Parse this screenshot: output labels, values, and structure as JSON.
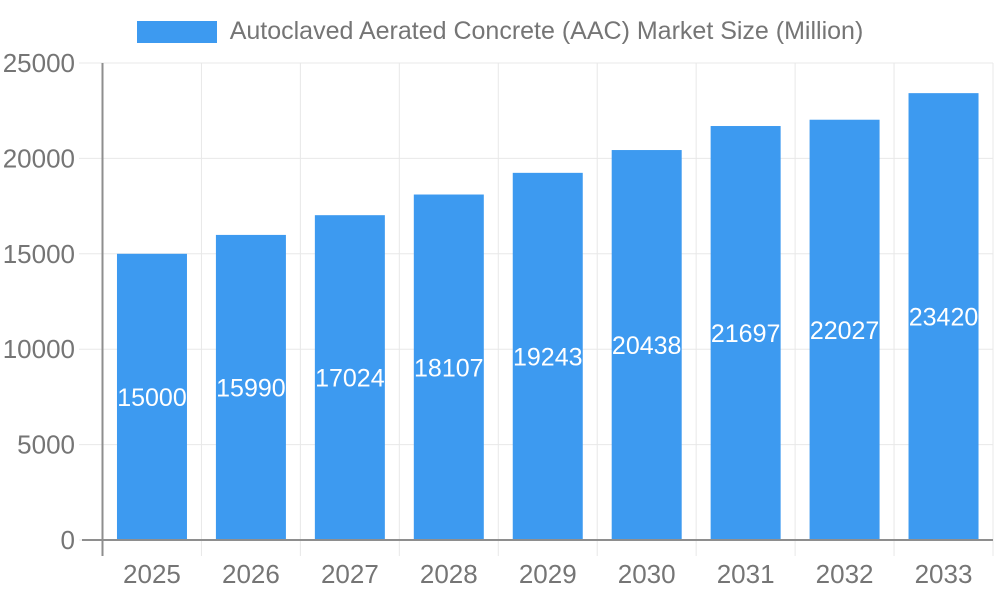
{
  "legend": {
    "position": "top",
    "items": [
      {
        "label": "Autoclaved Aerated Concrete (AAC) Market Size (Million)",
        "swatch_color": "#3d9af0"
      }
    ]
  },
  "colors": {
    "background": "#ffffff",
    "bar": "#3d9af0",
    "axis_line": "#8e8e8e",
    "grid_line": "#e8e8e8",
    "axis_text": "#757575",
    "value_text": "#ffffff"
  },
  "chart_data": {
    "type": "bar",
    "title": "Autoclaved Aerated Concrete (AAC) Market Size (Million)",
    "categories": [
      "2025",
      "2026",
      "2027",
      "2028",
      "2029",
      "2030",
      "2031",
      "2032",
      "2033"
    ],
    "series": [
      {
        "name": "Autoclaved Aerated Concrete (AAC) Market Size (Million)",
        "values": [
          15000,
          15990,
          17024,
          18107,
          19243,
          20438,
          21697,
          22027,
          23420
        ]
      }
    ],
    "bar_value_labels": [
      "15000",
      "15990",
      "17024",
      "18107",
      "19243",
      "20438",
      "21697",
      "22027",
      "23420"
    ],
    "xlabel": "",
    "ylabel": "",
    "ylim": [
      0,
      25000
    ],
    "yticks": [
      0,
      5000,
      10000,
      15000,
      20000,
      25000
    ],
    "ytick_labels": [
      "0",
      "5000",
      "10000",
      "15000",
      "20000",
      "25000"
    ],
    "grid": true,
    "legend_position": "top"
  }
}
